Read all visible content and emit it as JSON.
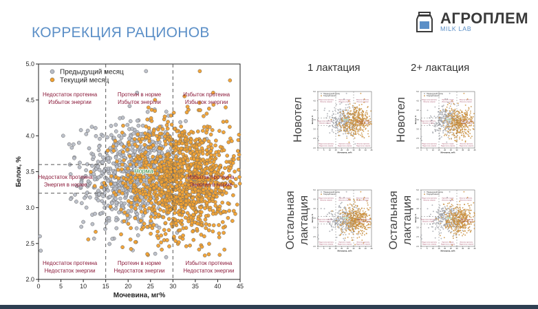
{
  "slide": {
    "title": "КОРРЕКЦИЯ РАЦИОНОВ"
  },
  "logo": {
    "name": "АГРОПЛЕМ",
    "sub": "MILK LAB"
  },
  "colors": {
    "previous": "#b9bec7",
    "current": "#f0a030",
    "zone_text": "#8b1a3a",
    "norm_text": "#2f8a3c",
    "title": "#5b8fc7"
  },
  "grid_labels": {
    "columns": [
      "1 лактация",
      "2+ лактация"
    ],
    "rows": [
      "Новотел",
      "Остальная лактация"
    ]
  },
  "chart_data": {
    "type": "scatter",
    "title": "",
    "xlabel": "Мочевина, мг%",
    "ylabel": "Белок, %",
    "xlim": [
      0,
      45
    ],
    "ylim": [
      2.0,
      5.0
    ],
    "x_ticks": [
      "0",
      "5",
      "10",
      "15",
      "20",
      "25",
      "30",
      "35",
      "40",
      "45"
    ],
    "y_ticks": [
      "2.0",
      "2.5",
      "3.0",
      "3.5",
      "4.0",
      "4.5",
      "5.0"
    ],
    "legend_position": "top-left",
    "thresholds": {
      "x": [
        15,
        30
      ],
      "y": [
        3.2,
        3.6
      ]
    },
    "series": [
      {
        "name": "Предыдущий месяц",
        "color": "#b9bec7",
        "approx_count": 700,
        "distribution": {
          "x_mean": 21,
          "x_sd": 5.5,
          "y_mean": 3.45,
          "y_sd": 0.38
        },
        "sample_points": [
          [
            0.5,
            2.4
          ],
          [
            0.3,
            2.6
          ],
          [
            5.5,
            4.0
          ],
          [
            7,
            3.6
          ],
          [
            8,
            3.7
          ],
          [
            22,
            4.6
          ],
          [
            24,
            4.9
          ],
          [
            10,
            2.8
          ],
          [
            12,
            2.9
          ],
          [
            18,
            3.9
          ]
        ]
      },
      {
        "name": "Текущий месяц",
        "color": "#f0a030",
        "approx_count": 1200,
        "distribution": {
          "x_mean": 32,
          "x_sd": 6.5,
          "y_mean": 3.4,
          "y_sd": 0.4
        },
        "sample_points": [
          [
            36,
            4.9
          ],
          [
            39,
            4.6
          ],
          [
            44,
            3.3
          ],
          [
            26,
            4.5
          ],
          [
            30,
            2.8
          ],
          [
            34,
            3.9
          ],
          [
            40,
            3.0
          ],
          [
            28,
            3.5
          ],
          [
            37,
            2.6
          ],
          [
            42,
            4.2
          ]
        ]
      }
    ],
    "zone_labels": [
      {
        "lines": [
          "Недостаток протеина",
          "Избыток энергии"
        ],
        "x": 7,
        "y": 4.55,
        "kind": "zone"
      },
      {
        "lines": [
          "Протеин в норме",
          "Избыток энергии"
        ],
        "x": 22.5,
        "y": 4.55,
        "kind": "zone"
      },
      {
        "lines": [
          "Избыток протеина",
          "Избыток энергии"
        ],
        "x": 37.5,
        "y": 4.55,
        "kind": "zone"
      },
      {
        "lines": [
          "Недостаток протеина",
          "Энергия в норме"
        ],
        "x": 6,
        "y": 3.4,
        "kind": "zone"
      },
      {
        "lines": [
          "Норма"
        ],
        "x": 23.5,
        "y": 3.48,
        "kind": "norm"
      },
      {
        "lines": [
          "Избыток протеина",
          "Энергия в норме"
        ],
        "x": 38.5,
        "y": 3.4,
        "kind": "zone"
      },
      {
        "lines": [
          "Недостаток протеина",
          "Недостаток энергии"
        ],
        "x": 7,
        "y": 2.2,
        "kind": "zone"
      },
      {
        "lines": [
          "Протеин в норме",
          "Недостаток энергии"
        ],
        "x": 22.5,
        "y": 2.2,
        "kind": "zone"
      },
      {
        "lines": [
          "Избыток протеина",
          "Недостаток энергии"
        ],
        "x": 38,
        "y": 2.2,
        "kind": "zone"
      }
    ]
  }
}
